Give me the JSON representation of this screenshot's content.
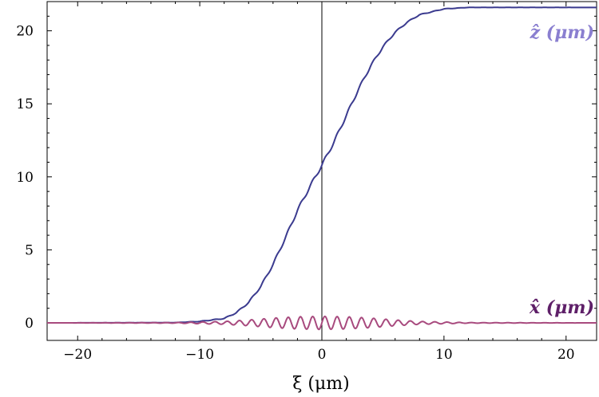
{
  "chart_data": {
    "type": "line",
    "title": "",
    "xlabel": "ξ (μm)",
    "ylabel": "",
    "xlim": [
      -22.5,
      22.5
    ],
    "ylim": [
      -1.2,
      22.0
    ],
    "x_ticks": [
      -20,
      -10,
      0,
      10,
      20
    ],
    "x_tick_labels": [
      "−20",
      "−10",
      "0",
      "10",
      "20"
    ],
    "y_ticks": [
      0,
      5,
      10,
      15,
      20
    ],
    "y_tick_labels": [
      "0",
      "5",
      "10",
      "15",
      "20"
    ],
    "grid": false,
    "series": [
      {
        "name": "ẑ (μm)",
        "color": "#3b3b8f",
        "label_color": "#8a7fd0",
        "x": [
          -22.5,
          -12,
          -10,
          -8,
          -7,
          -6,
          -5,
          -4,
          -3,
          -2,
          -1,
          0,
          1,
          2,
          3,
          4,
          5,
          6,
          7,
          8,
          10,
          12,
          22.5
        ],
        "values": [
          0,
          0.02,
          0.1,
          0.3,
          0.7,
          1.4,
          2.5,
          4.0,
          5.8,
          7.7,
          9.3,
          10.8,
          12.4,
          14.2,
          16.0,
          17.6,
          18.9,
          19.9,
          20.6,
          21.1,
          21.5,
          21.6,
          21.6
        ]
      },
      {
        "name": "x̂ (μm)",
        "color": "#a84a7e",
        "label_color": "#5e1f68",
        "x": [
          -22.5,
          -12,
          -8,
          -6,
          -4,
          -2,
          0,
          2,
          4,
          6,
          8,
          12,
          22.5
        ],
        "amplitude": [
          0,
          0.02,
          0.1,
          0.2,
          0.33,
          0.42,
          0.45,
          0.42,
          0.33,
          0.2,
          0.1,
          0.02,
          0
        ]
      }
    ]
  }
}
